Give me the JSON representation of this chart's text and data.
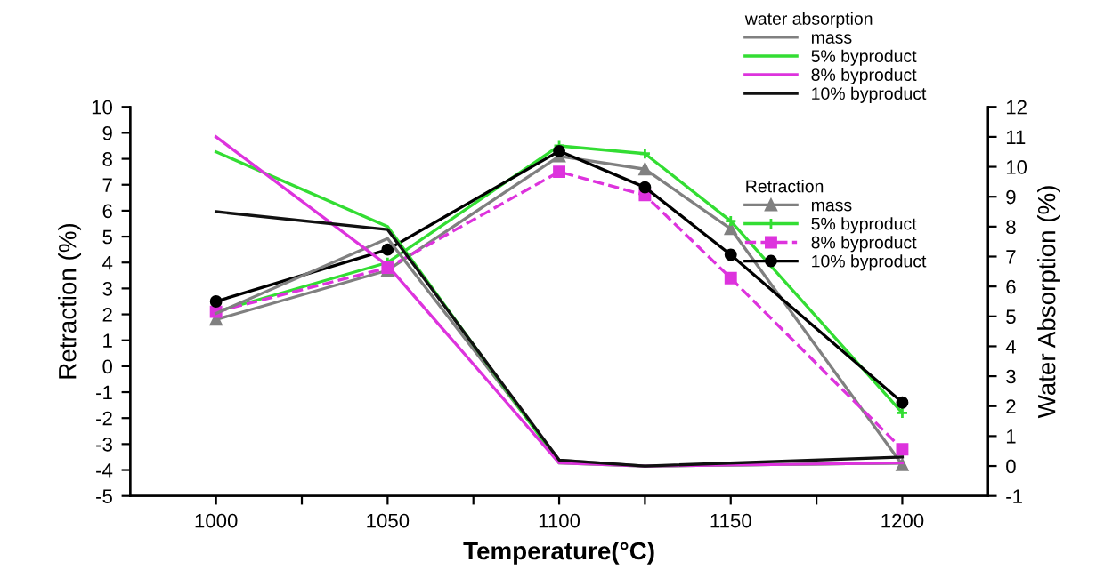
{
  "chart_data": {
    "type": "line",
    "xlabel": "Temperature(°C)",
    "ylabel": "Retraction (%)",
    "y2label": "Water Absorption (%)",
    "legend_title": [
      "water absorption",
      "Retraction"
    ],
    "xlim": [
      975,
      1225
    ],
    "xticks": [
      1000,
      {
        "value": 1025,
        "label": null
      },
      1050,
      {
        "value": 1075,
        "label": null
      },
      1100,
      {
        "value": 1125,
        "label": null
      },
      1150,
      {
        "value": 1175,
        "label": null
      },
      1200
    ],
    "ylim": [
      -5,
      10
    ],
    "yticks": [
      -5,
      -4,
      -3,
      -2,
      -1,
      0,
      1,
      2,
      3,
      4,
      5,
      6,
      7,
      8,
      9,
      10
    ],
    "y2lim": [
      -1,
      12
    ],
    "y2ticks": [
      -1,
      0,
      1,
      2,
      3,
      4,
      5,
      6,
      7,
      8,
      9,
      10,
      11,
      12
    ],
    "grid": false,
    "legend": "top right",
    "series": [
      {
        "name": "mass",
        "color": "#808080",
        "axis": "y2",
        "marker": "none",
        "line_style": "solid",
        "x": [
          1000,
          1050,
          1100,
          1125,
          1200
        ],
        "values": [
          5.1,
          7.6,
          0.2,
          0.0,
          0.1
        ]
      },
      {
        "name": "5% byproduct",
        "color": "#33dd33",
        "axis": "y2",
        "marker": "none",
        "line_style": "solid",
        "x": [
          1000,
          1050,
          1100,
          1125,
          1200
        ],
        "values": [
          10.5,
          8.0,
          0.1,
          0.0,
          0.1
        ]
      },
      {
        "name": "8% byproduct",
        "color": "#dd33dd",
        "axis": "y2",
        "marker": "none",
        "line_style": "solid",
        "x": [
          1000,
          1050,
          1100,
          1125,
          1200
        ],
        "values": [
          11.0,
          6.7,
          0.1,
          0.0,
          0.1
        ]
      },
      {
        "name": "10% byproduct",
        "color": "#111111",
        "axis": "y2",
        "marker": "none",
        "line_style": "solid",
        "x": [
          1000,
          1050,
          1100,
          1125,
          1200
        ],
        "values": [
          8.5,
          7.9,
          0.2,
          0.0,
          0.3
        ]
      },
      {
        "name": "mass",
        "color": "#808080",
        "axis": "y",
        "marker": "triangle",
        "line_style": "solid",
        "x": [
          1000,
          1050,
          1100,
          1125,
          1150,
          1200
        ],
        "values": [
          1.8,
          3.7,
          8.1,
          7.6,
          5.3,
          -3.8
        ]
      },
      {
        "name": "5% byproduct",
        "color": "#33dd33",
        "axis": "y",
        "marker": "cross",
        "line_style": "solid",
        "x": [
          1000,
          1050,
          1100,
          1125,
          1150,
          1200
        ],
        "values": [
          2.1,
          4.0,
          8.5,
          8.2,
          5.6,
          -1.8
        ]
      },
      {
        "name": "8% byproduct",
        "color": "#dd33dd",
        "axis": "y",
        "marker": "square",
        "line_style": "dashed",
        "x": [
          1000,
          1050,
          1100,
          1125,
          1150,
          1200
        ],
        "values": [
          2.1,
          3.8,
          7.5,
          6.6,
          3.4,
          -3.2
        ]
      },
      {
        "name": "10% byproduct",
        "color": "#000000",
        "axis": "y",
        "marker": "circle",
        "line_style": "solid",
        "x": [
          1000,
          1050,
          1100,
          1125,
          1150,
          1200
        ],
        "values": [
          2.5,
          4.5,
          8.3,
          6.9,
          4.3,
          -1.4
        ]
      }
    ]
  }
}
